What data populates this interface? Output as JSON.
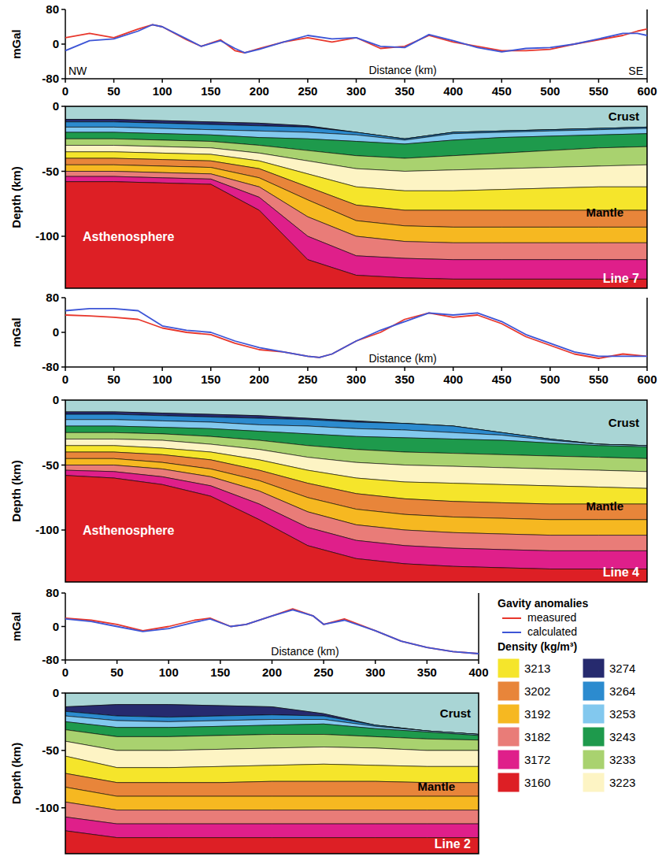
{
  "chart_data": [
    {
      "type": "line",
      "y_label": "mGal",
      "x_label": "Distance (km)",
      "annotations": {
        "left": "NW",
        "right": "SE"
      },
      "x": [
        0,
        25,
        50,
        75,
        90,
        100,
        125,
        140,
        160,
        175,
        185,
        200,
        225,
        250,
        275,
        300,
        325,
        350,
        375,
        400,
        425,
        450,
        475,
        500,
        525,
        550,
        575,
        590,
        600
      ],
      "series": [
        {
          "name": "measured",
          "color": "#e8372c",
          "values": [
            15,
            25,
            15,
            35,
            45,
            40,
            10,
            -5,
            10,
            -15,
            -20,
            -10,
            5,
            15,
            5,
            15,
            -10,
            -5,
            20,
            5,
            -5,
            -15,
            -15,
            -12,
            0,
            10,
            20,
            30,
            35
          ]
        },
        {
          "name": "calculated",
          "color": "#3d55d6",
          "values": [
            -15,
            8,
            12,
            30,
            45,
            40,
            12,
            -5,
            8,
            -10,
            -20,
            -12,
            5,
            20,
            12,
            15,
            -5,
            -8,
            22,
            8,
            -8,
            -18,
            -10,
            -8,
            0,
            12,
            25,
            25,
            20
          ]
        }
      ],
      "xlim": [
        0,
        600
      ],
      "ylim": [
        -80,
        80
      ],
      "xticks": [
        0,
        50,
        100,
        150,
        200,
        250,
        300,
        350,
        400,
        450,
        500,
        550,
        600
      ],
      "yticks": [
        -80,
        0,
        80
      ]
    },
    {
      "type": "layers",
      "title": "Line 7",
      "y_label": "Depth (km)",
      "annotation": "Mantle",
      "tick_labels": "y",
      "x": [
        0,
        50,
        100,
        150,
        200,
        250,
        300,
        350,
        400,
        450,
        500,
        550,
        600
      ],
      "xlim": [
        0,
        600
      ],
      "ylim": [
        -140,
        0
      ],
      "yticks": [
        0,
        -50,
        -100
      ],
      "series": [
        {
          "name": "Crust",
          "color": "#a9d5d5",
          "values": [
            -10,
            -10,
            -11,
            -12,
            -13,
            -15,
            -20,
            -25,
            -20,
            -19,
            -18,
            -17,
            -16
          ]
        },
        {
          "density": 3274,
          "values": [
            -12,
            -12,
            -13,
            -14,
            -15,
            -16,
            -20,
            -25,
            -20,
            -19,
            -18,
            -17,
            -16
          ]
        },
        {
          "density": 3264,
          "values": [
            -16,
            -16,
            -17,
            -18,
            -19,
            -20,
            -22,
            -26,
            -21,
            -20,
            -19,
            -18,
            -17
          ]
        },
        {
          "density": 3253,
          "values": [
            -20,
            -20,
            -21,
            -22,
            -24,
            -25,
            -27,
            -29,
            -26,
            -24,
            -23,
            -22,
            -21
          ]
        },
        {
          "density": 3243,
          "values": [
            -25,
            -25,
            -26,
            -27,
            -30,
            -34,
            -38,
            -40,
            -38,
            -36,
            -34,
            -32,
            -31
          ]
        },
        {
          "density": 3233,
          "values": [
            -30,
            -30,
            -31,
            -32,
            -36,
            -42,
            -48,
            -50,
            -49,
            -48,
            -47,
            -46,
            -45
          ]
        },
        {
          "density": 3223,
          "values": [
            -35,
            -35,
            -36,
            -37,
            -42,
            -52,
            -62,
            -65,
            -65,
            -64,
            -63,
            -62,
            -62
          ]
        },
        {
          "density": 3213,
          "values": [
            -40,
            -40,
            -41,
            -42,
            -48,
            -62,
            -76,
            -80,
            -80,
            -80,
            -80,
            -80,
            -80
          ]
        },
        {
          "density": 3202,
          "values": [
            -45,
            -45,
            -46,
            -47,
            -55,
            -72,
            -88,
            -92,
            -93,
            -93,
            -93,
            -93,
            -93
          ]
        },
        {
          "density": 3192,
          "values": [
            -50,
            -50,
            -51,
            -52,
            -62,
            -85,
            -100,
            -104,
            -105,
            -105,
            -105,
            -105,
            -105
          ]
        },
        {
          "density": 3182,
          "values": [
            -54,
            -54,
            -55,
            -56,
            -70,
            -100,
            -115,
            -117,
            -118,
            -118,
            -118,
            -118,
            -118
          ]
        },
        {
          "density": 3172,
          "values": [
            -58,
            -58,
            -59,
            -60,
            -80,
            -118,
            -130,
            -132,
            -133,
            -133,
            -133,
            -133,
            -133
          ]
        },
        {
          "name": "Asthenosphere",
          "density": 3160,
          "values": [
            -140,
            -140,
            -140,
            -140,
            -140,
            -140,
            -140,
            -140,
            -140,
            -140,
            -140,
            -140,
            -140
          ]
        }
      ]
    },
    {
      "type": "line",
      "y_label": "mGal",
      "x_label": "Distance (km)",
      "x": [
        0,
        25,
        50,
        75,
        100,
        125,
        150,
        175,
        200,
        225,
        250,
        262,
        275,
        300,
        325,
        350,
        375,
        400,
        425,
        450,
        475,
        500,
        525,
        550,
        575,
        600
      ],
      "series": [
        {
          "name": "measured",
          "color": "#e8372c",
          "values": [
            40,
            38,
            35,
            30,
            10,
            0,
            -5,
            -25,
            -40,
            -45,
            -55,
            -58,
            -50,
            -20,
            0,
            30,
            45,
            35,
            40,
            20,
            -10,
            -30,
            -50,
            -60,
            -50,
            -55
          ]
        },
        {
          "name": "calculated",
          "color": "#3d55d6",
          "values": [
            50,
            55,
            55,
            50,
            15,
            5,
            0,
            -20,
            -35,
            -45,
            -55,
            -58,
            -50,
            -20,
            5,
            25,
            45,
            40,
            45,
            25,
            -5,
            -25,
            -45,
            -55,
            -55,
            -55
          ]
        }
      ],
      "xlim": [
        0,
        600
      ],
      "ylim": [
        -80,
        80
      ],
      "xticks": [
        0,
        50,
        100,
        150,
        200,
        250,
        300,
        350,
        400,
        450,
        500,
        550,
        600
      ],
      "yticks": [
        -80,
        0,
        80
      ]
    },
    {
      "type": "layers",
      "title": "Line 4",
      "y_label": "Depth (km)",
      "annotation": "Mantle",
      "tick_labels": "y",
      "x": [
        0,
        50,
        100,
        150,
        200,
        250,
        300,
        350,
        400,
        450,
        500,
        550,
        600
      ],
      "xlim": [
        0,
        600
      ],
      "ylim": [
        -140,
        0
      ],
      "yticks": [
        0,
        -50,
        -100
      ],
      "series": [
        {
          "name": "Crust",
          "color": "#a9d5d5",
          "values": [
            -9,
            -9,
            -10,
            -11,
            -12,
            -14,
            -16,
            -18,
            -20,
            -25,
            -30,
            -34,
            -35
          ]
        },
        {
          "density": 3274,
          "values": [
            -11,
            -11,
            -12,
            -13,
            -14,
            -15,
            -17,
            -18,
            -20,
            -25,
            -30,
            -34,
            -35
          ]
        },
        {
          "density": 3264,
          "values": [
            -15,
            -15,
            -16,
            -17,
            -19,
            -20,
            -22,
            -23,
            -25,
            -27,
            -31,
            -34,
            -35
          ]
        },
        {
          "density": 3253,
          "values": [
            -20,
            -20,
            -21,
            -22,
            -24,
            -26,
            -28,
            -29,
            -30,
            -31,
            -33,
            -35,
            -36
          ]
        },
        {
          "density": 3243,
          "values": [
            -25,
            -25,
            -26,
            -28,
            -31,
            -35,
            -38,
            -40,
            -41,
            -42,
            -43,
            -44,
            -45
          ]
        },
        {
          "density": 3233,
          "values": [
            -30,
            -30,
            -31,
            -34,
            -38,
            -44,
            -48,
            -50,
            -51,
            -52,
            -53,
            -54,
            -55
          ]
        },
        {
          "density": 3223,
          "values": [
            -35,
            -35,
            -37,
            -40,
            -46,
            -54,
            -60,
            -63,
            -64,
            -65,
            -66,
            -67,
            -68
          ]
        },
        {
          "density": 3213,
          "values": [
            -40,
            -40,
            -42,
            -46,
            -54,
            -64,
            -72,
            -76,
            -78,
            -79,
            -80,
            -80,
            -80
          ]
        },
        {
          "density": 3202,
          "values": [
            -45,
            -45,
            -48,
            -53,
            -62,
            -75,
            -84,
            -88,
            -90,
            -91,
            -92,
            -92,
            -92
          ]
        },
        {
          "density": 3192,
          "values": [
            -50,
            -50,
            -53,
            -59,
            -70,
            -86,
            -96,
            -100,
            -102,
            -103,
            -104,
            -104,
            -104
          ]
        },
        {
          "density": 3182,
          "values": [
            -54,
            -55,
            -59,
            -66,
            -80,
            -98,
            -108,
            -112,
            -114,
            -115,
            -116,
            -116,
            -116
          ]
        },
        {
          "density": 3172,
          "values": [
            -58,
            -60,
            -65,
            -74,
            -92,
            -112,
            -122,
            -126,
            -128,
            -129,
            -130,
            -130,
            -130
          ]
        },
        {
          "name": "Asthenosphere",
          "density": 3160,
          "values": [
            -140,
            -140,
            -140,
            -140,
            -140,
            -140,
            -140,
            -140,
            -140,
            -140,
            -140,
            -140,
            -140
          ]
        }
      ]
    },
    {
      "type": "line",
      "y_label": "mGal",
      "x_label": "Distance (km)",
      "legend": "right",
      "legend_title": "Gavity anomalies",
      "x": [
        0,
        25,
        50,
        75,
        100,
        125,
        140,
        160,
        175,
        200,
        220,
        240,
        250,
        270,
        300,
        325,
        350,
        375,
        400
      ],
      "series": [
        {
          "name": "measured",
          "color": "#e8372c",
          "values": [
            20,
            15,
            5,
            -10,
            0,
            15,
            20,
            0,
            5,
            25,
            42,
            25,
            5,
            18,
            -10,
            -35,
            -50,
            -60,
            -65
          ]
        },
        {
          "name": "calculated",
          "color": "#3d55d6",
          "values": [
            18,
            12,
            0,
            -12,
            -5,
            10,
            18,
            0,
            5,
            25,
            40,
            25,
            5,
            15,
            -10,
            -35,
            -50,
            -60,
            -65
          ]
        }
      ],
      "xlim": [
        0,
        400
      ],
      "ylim": [
        -80,
        80
      ],
      "xticks": [
        0,
        50,
        100,
        150,
        200,
        250,
        300,
        350,
        400
      ],
      "yticks": [
        -80,
        0,
        80
      ]
    },
    {
      "type": "layers",
      "title": "Line 2",
      "y_label": "Depth (km)",
      "annotation": "Mantle",
      "tick_labels": "y",
      "x": [
        0,
        50,
        100,
        150,
        200,
        250,
        300,
        350,
        400
      ],
      "xlim": [
        0,
        400
      ],
      "ylim": [
        -140,
        0
      ],
      "yticks": [
        0,
        -50,
        -100
      ],
      "series": [
        {
          "name": "Crust",
          "color": "#a9d5d5",
          "values": [
            -12,
            -10,
            -10,
            -11,
            -12,
            -18,
            -28,
            -33,
            -36
          ]
        },
        {
          "density": 3274,
          "values": [
            -16,
            -20,
            -21,
            -20,
            -19,
            -20,
            -28,
            -33,
            -36
          ]
        },
        {
          "density": 3264,
          "values": [
            -20,
            -24,
            -25,
            -24,
            -23,
            -23,
            -29,
            -33,
            -36
          ]
        },
        {
          "density": 3253,
          "values": [
            -25,
            -30,
            -30,
            -29,
            -28,
            -27,
            -31,
            -34,
            -37
          ]
        },
        {
          "density": 3243,
          "values": [
            -32,
            -38,
            -38,
            -37,
            -36,
            -36,
            -38,
            -40,
            -41
          ]
        },
        {
          "density": 3233,
          "values": [
            -42,
            -50,
            -50,
            -49,
            -48,
            -47,
            -48,
            -50,
            -50
          ]
        },
        {
          "density": 3223,
          "values": [
            -55,
            -65,
            -65,
            -64,
            -63,
            -62,
            -63,
            -64,
            -64
          ]
        },
        {
          "density": 3213,
          "values": [
            -70,
            -78,
            -78,
            -78,
            -77,
            -77,
            -77,
            -78,
            -78
          ]
        },
        {
          "density": 3202,
          "values": [
            -82,
            -90,
            -90,
            -90,
            -90,
            -90,
            -90,
            -90,
            -90
          ]
        },
        {
          "density": 3192,
          "values": [
            -95,
            -102,
            -102,
            -102,
            -102,
            -102,
            -102,
            -102,
            -102
          ]
        },
        {
          "density": 3182,
          "values": [
            -108,
            -114,
            -114,
            -114,
            -114,
            -114,
            -114,
            -114,
            -114
          ]
        },
        {
          "density": 3172,
          "values": [
            -120,
            -126,
            -126,
            -126,
            -126,
            -126,
            -126,
            -126,
            -126
          ]
        },
        {
          "density": 3160,
          "values": [
            -140,
            -140,
            -140,
            -140,
            -140,
            -140,
            -140,
            -140,
            -140
          ]
        }
      ]
    }
  ],
  "density_legend": {
    "title": "Density (kg/m³)",
    "items": [
      {
        "density": 3213,
        "color": "#f5e52b"
      },
      {
        "density": 3202,
        "color": "#e8853a"
      },
      {
        "density": 3192,
        "color": "#f6b821"
      },
      {
        "density": 3182,
        "color": "#e97c78"
      },
      {
        "density": 3172,
        "color": "#df1f8a"
      },
      {
        "density": 3160,
        "color": "#dd1f25"
      },
      {
        "density": 3274,
        "color": "#262a6e"
      },
      {
        "density": 3264,
        "color": "#2c8bcf"
      },
      {
        "density": 3253,
        "color": "#82c8ee"
      },
      {
        "density": 3243,
        "color": "#1e9a4c"
      },
      {
        "density": 3233,
        "color": "#a9d26f"
      },
      {
        "density": 3223,
        "color": "#fdf4c4"
      }
    ]
  }
}
